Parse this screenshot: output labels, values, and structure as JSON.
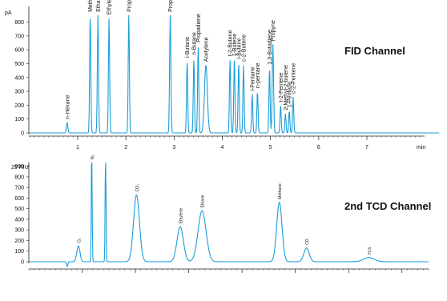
{
  "colors": {
    "trace": "#1a9fd9",
    "axis": "#222222",
    "text": "#111111"
  },
  "chart_data": [
    {
      "type": "line",
      "title": "FID Channel",
      "ylabel": "pA",
      "xlabel": "",
      "x_unit_label": "min",
      "xlim": [
        0,
        8.5
      ],
      "ylim": [
        -40,
        890
      ],
      "grid": false,
      "x_ticks": [
        {
          "value": 1,
          "label": "1"
        },
        {
          "value": 2,
          "label": "2"
        },
        {
          "value": 3,
          "label": "3"
        },
        {
          "value": 4,
          "label": "4"
        },
        {
          "value": 5,
          "label": "5"
        },
        {
          "value": 6,
          "label": "6"
        },
        {
          "value": 7,
          "label": "7"
        }
      ],
      "y_ticks": [
        {
          "value": 0,
          "label": "0"
        },
        {
          "value": 100,
          "label": "100"
        },
        {
          "value": 200,
          "label": "200"
        },
        {
          "value": 300,
          "label": "300"
        },
        {
          "value": 400,
          "label": "400"
        },
        {
          "value": 500,
          "label": "500"
        },
        {
          "value": 600,
          "label": "600"
        },
        {
          "value": 700,
          "label": "700"
        },
        {
          "value": 800,
          "label": "800"
        }
      ],
      "baseline": 0,
      "peaks": [
        {
          "name": "n-Hexane",
          "x": 0.78,
          "height": 75,
          "width": 0.015
        },
        {
          "name": "Methane",
          "x": 1.26,
          "height": 850,
          "width": 0.012
        },
        {
          "name": "Ethane",
          "x": 1.42,
          "height": 850,
          "width": 0.012
        },
        {
          "name": "Ethylene",
          "x": 1.65,
          "height": 830,
          "width": 0.012
        },
        {
          "name": "Propane",
          "x": 2.06,
          "height": 850,
          "width": 0.012
        },
        {
          "name": "Propylene",
          "x": 2.92,
          "height": 850,
          "width": 0.013
        },
        {
          "name": "i-Butane",
          "x": 3.27,
          "height": 520,
          "width": 0.012
        },
        {
          "name": "n-Butane",
          "x": 3.41,
          "height": 540,
          "width": 0.012
        },
        {
          "name": "Propadiene",
          "x": 3.5,
          "height": 630,
          "width": 0.012
        },
        {
          "name": "Acetylene",
          "x": 3.66,
          "height": 490,
          "width": 0.03
        },
        {
          "name": "t-2-Butene",
          "x": 4.16,
          "height": 530,
          "width": 0.012
        },
        {
          "name": "1-Butene",
          "x": 4.25,
          "height": 530,
          "width": 0.012
        },
        {
          "name": "i-Butene",
          "x": 4.34,
          "height": 510,
          "width": 0.012
        },
        {
          "name": "c-2-Butene",
          "x": 4.44,
          "height": 490,
          "width": 0.012
        },
        {
          "name": "i-Pentane",
          "x": 4.62,
          "height": 280,
          "width": 0.012
        },
        {
          "name": "n-pentane",
          "x": 4.73,
          "height": 300,
          "width": 0.012
        },
        {
          "name": "1,3-Butadiene",
          "x": 4.98,
          "height": 470,
          "width": 0.012
        },
        {
          "name": "Propyne",
          "x": 5.05,
          "height": 640,
          "width": 0.014
        },
        {
          "name": "t-2-Pentene",
          "x": 5.21,
          "height": 200,
          "width": 0.012
        },
        {
          "name": "2-Methyl-2-butene",
          "x": 5.31,
          "height": 140,
          "width": 0.012
        },
        {
          "name": "1-Pentene",
          "x": 5.39,
          "height": 160,
          "width": 0.012
        },
        {
          "name": "c-2-Pentene",
          "x": 5.47,
          "height": 260,
          "width": 0.012
        }
      ]
    },
    {
      "type": "line",
      "title": "2nd TCD Channel",
      "ylabel": "25 RIU",
      "xlabel": "",
      "xlim": [
        0,
        7.5
      ],
      "ylim": [
        -40,
        905
      ],
      "grid": false,
      "x_ticks": [
        {
          "value": 1,
          "label": "1"
        },
        {
          "value": 2,
          "label": "2"
        },
        {
          "value": 3,
          "label": "3"
        },
        {
          "value": 4,
          "label": "4"
        },
        {
          "value": 5,
          "label": "5"
        },
        {
          "value": 6,
          "label": "6"
        },
        {
          "value": 7,
          "label": "7"
        }
      ],
      "y_ticks": [
        {
          "value": 0,
          "label": "0"
        },
        {
          "value": 100,
          "label": "100"
        },
        {
          "value": 200,
          "label": "200"
        },
        {
          "value": 300,
          "label": "300"
        },
        {
          "value": 400,
          "label": "400"
        },
        {
          "value": 500,
          "label": "500"
        },
        {
          "value": 600,
          "label": "600"
        },
        {
          "value": 700,
          "label": "700"
        },
        {
          "value": 800,
          "label": "800"
        },
        {
          "value": 900,
          "label": "900"
        }
      ],
      "baseline": 0,
      "dip": {
        "x": 0.72,
        "depth": -45,
        "width": 0.012
      },
      "peaks": [
        {
          "name": "O₂",
          "x": 0.93,
          "height": 150,
          "width": 0.03
        },
        {
          "name": "N₂",
          "x": 1.18,
          "height": 1100,
          "width": 0.008
        },
        {
          "name": "",
          "x": 1.44,
          "height": 1100,
          "width": 0.008
        },
        {
          "name": "CO₂",
          "x": 2.02,
          "height": 630,
          "width": 0.055
        },
        {
          "name": "Ethylene",
          "x": 2.84,
          "height": 330,
          "width": 0.06
        },
        {
          "name": "Ethane",
          "x": 3.25,
          "height": 480,
          "width": 0.075
        },
        {
          "name": "Methane",
          "x": 4.7,
          "height": 560,
          "width": 0.05
        },
        {
          "name": "CO",
          "x": 5.21,
          "height": 130,
          "width": 0.05
        },
        {
          "name": "H₂S",
          "x": 6.38,
          "height": 40,
          "width": 0.1
        }
      ]
    }
  ]
}
